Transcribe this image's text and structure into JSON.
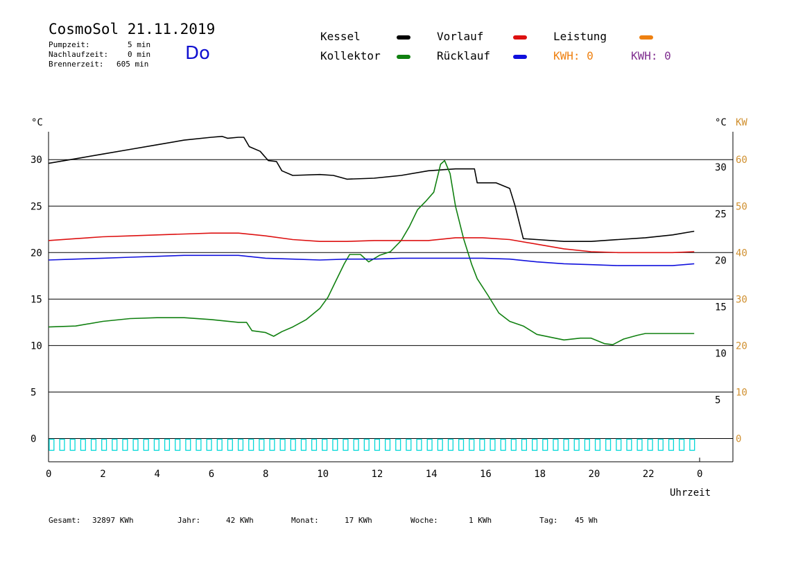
{
  "header": {
    "title": "CosmoSol 21.11.2019",
    "day": "Do",
    "stats": [
      {
        "label": "Pumpzeit:",
        "value": "5 min"
      },
      {
        "label": "Nachlaufzeit:",
        "value": "0 min"
      },
      {
        "label": "Brennerzeit:",
        "value": "605 min"
      }
    ]
  },
  "legend": {
    "kessel": "Kessel",
    "kollektor": "Kollektor",
    "vorlauf": "Vorlauf",
    "ruecklauf": "Rücklauf",
    "leistung": "Leistung",
    "kwh_orange": "KWH: 0",
    "kwh_purple": "KWH: 0"
  },
  "colors": {
    "kessel": "#000000",
    "kollektor": "#108010",
    "vorlauf": "#dd1010",
    "ruecklauf": "#1010dd",
    "leistung": "#ee8010",
    "kwh_purple": "#803090",
    "pump": "#00d8d8",
    "axis_kw": "#d09030"
  },
  "footer": [
    {
      "label": "Gesamt:",
      "value": "32897 KWh"
    },
    {
      "label": "Jahr:",
      "value": "42 KWh"
    },
    {
      "label": "Monat:",
      "value": "17 KWh"
    },
    {
      "label": "Woche:",
      "value": "1 KWh"
    },
    {
      "label": "Tag:",
      "value": "45 Wh"
    }
  ],
  "chart_data": {
    "type": "line",
    "xlabel": "Uhrzeit",
    "ylabel_left": "°C",
    "ylabel_right": "°C",
    "ylabel_right2": "KW",
    "xlim": [
      0,
      24
    ],
    "ylim": [
      -2.5,
      33
    ],
    "grid": true,
    "x_ticks": [
      "0",
      "2",
      "4",
      "6",
      "8",
      "10",
      "12",
      "14",
      "16",
      "18",
      "20",
      "22",
      "0"
    ],
    "y_ticks_left": [
      0,
      5,
      10,
      15,
      20,
      25,
      30
    ],
    "y_ticks_right": [
      5,
      10,
      15,
      20,
      25,
      30
    ],
    "y_ticks_kw": [
      0,
      10,
      20,
      30,
      40,
      50,
      60
    ],
    "series": [
      {
        "name": "Kessel",
        "color": "#000000",
        "points": [
          [
            0,
            29.6
          ],
          [
            1,
            30.1
          ],
          [
            2,
            30.6
          ],
          [
            3,
            31.1
          ],
          [
            4,
            31.6
          ],
          [
            5,
            32.1
          ],
          [
            6,
            32.4
          ],
          [
            6.4,
            32.5
          ],
          [
            6.6,
            32.3
          ],
          [
            7,
            32.4
          ],
          [
            7.2,
            32.4
          ],
          [
            7.4,
            31.4
          ],
          [
            7.8,
            30.9
          ],
          [
            8.1,
            29.9
          ],
          [
            8.4,
            29.8
          ],
          [
            8.6,
            28.8
          ],
          [
            9,
            28.3
          ],
          [
            10,
            28.4
          ],
          [
            10.5,
            28.3
          ],
          [
            11,
            27.9
          ],
          [
            12,
            28.0
          ],
          [
            13,
            28.3
          ],
          [
            14,
            28.8
          ],
          [
            15,
            29.0
          ],
          [
            15.7,
            29.0
          ],
          [
            15.8,
            27.5
          ],
          [
            16.5,
            27.5
          ],
          [
            17,
            26.9
          ],
          [
            17.2,
            25.0
          ],
          [
            17.5,
            21.5
          ],
          [
            18,
            21.4
          ],
          [
            19,
            21.2
          ],
          [
            20,
            21.2
          ],
          [
            21,
            21.4
          ],
          [
            22,
            21.6
          ],
          [
            23,
            21.9
          ],
          [
            23.8,
            22.3
          ]
        ]
      },
      {
        "name": "Kollektor",
        "color": "#108010",
        "points": [
          [
            0,
            12.0
          ],
          [
            1,
            12.1
          ],
          [
            2,
            12.6
          ],
          [
            3,
            12.9
          ],
          [
            4,
            13.0
          ],
          [
            5,
            13.0
          ],
          [
            6,
            12.8
          ],
          [
            7,
            12.5
          ],
          [
            7.3,
            12.5
          ],
          [
            7.5,
            11.6
          ],
          [
            8,
            11.4
          ],
          [
            8.3,
            11.0
          ],
          [
            8.6,
            11.5
          ],
          [
            9,
            12.0
          ],
          [
            9.5,
            12.8
          ],
          [
            10,
            14.0
          ],
          [
            10.3,
            15.2
          ],
          [
            10.6,
            17.0
          ],
          [
            10.9,
            18.8
          ],
          [
            11.1,
            19.8
          ],
          [
            11.5,
            19.8
          ],
          [
            11.8,
            19.0
          ],
          [
            12.2,
            19.7
          ],
          [
            12.6,
            20.1
          ],
          [
            13,
            21.3
          ],
          [
            13.3,
            22.8
          ],
          [
            13.6,
            24.6
          ],
          [
            13.9,
            25.5
          ],
          [
            14.2,
            26.5
          ],
          [
            14.45,
            29.5
          ],
          [
            14.6,
            29.9
          ],
          [
            14.8,
            28.5
          ],
          [
            15,
            25.0
          ],
          [
            15.3,
            21.5
          ],
          [
            15.6,
            18.7
          ],
          [
            15.8,
            17.2
          ],
          [
            16.2,
            15.4
          ],
          [
            16.6,
            13.5
          ],
          [
            17,
            12.6
          ],
          [
            17.5,
            12.1
          ],
          [
            18,
            11.2
          ],
          [
            18.5,
            10.9
          ],
          [
            19,
            10.6
          ],
          [
            19.6,
            10.8
          ],
          [
            20,
            10.8
          ],
          [
            20.5,
            10.2
          ],
          [
            20.8,
            10.1
          ],
          [
            21.2,
            10.7
          ],
          [
            21.7,
            11.1
          ],
          [
            22,
            11.3
          ],
          [
            23,
            11.3
          ],
          [
            23.8,
            11.3
          ]
        ]
      },
      {
        "name": "Vorlauf",
        "color": "#dd1010",
        "points": [
          [
            0,
            21.3
          ],
          [
            1,
            21.5
          ],
          [
            2,
            21.7
          ],
          [
            3,
            21.8
          ],
          [
            4,
            21.9
          ],
          [
            5,
            22.0
          ],
          [
            6,
            22.1
          ],
          [
            7,
            22.1
          ],
          [
            8,
            21.8
          ],
          [
            9,
            21.4
          ],
          [
            10,
            21.2
          ],
          [
            11,
            21.2
          ],
          [
            12,
            21.3
          ],
          [
            13,
            21.3
          ],
          [
            14,
            21.3
          ],
          [
            15,
            21.6
          ],
          [
            16,
            21.6
          ],
          [
            17,
            21.4
          ],
          [
            18,
            20.9
          ],
          [
            19,
            20.4
          ],
          [
            20,
            20.1
          ],
          [
            21,
            20.0
          ],
          [
            22,
            20.0
          ],
          [
            23,
            20.0
          ],
          [
            23.8,
            20.1
          ]
        ]
      },
      {
        "name": "Rücklauf",
        "color": "#1010dd",
        "points": [
          [
            0,
            19.2
          ],
          [
            1,
            19.3
          ],
          [
            2,
            19.4
          ],
          [
            3,
            19.5
          ],
          [
            4,
            19.6
          ],
          [
            5,
            19.7
          ],
          [
            6,
            19.7
          ],
          [
            7,
            19.7
          ],
          [
            8,
            19.4
          ],
          [
            9,
            19.3
          ],
          [
            10,
            19.2
          ],
          [
            11,
            19.3
          ],
          [
            12,
            19.3
          ],
          [
            13,
            19.4
          ],
          [
            14,
            19.4
          ],
          [
            15,
            19.4
          ],
          [
            16,
            19.4
          ],
          [
            17,
            19.3
          ],
          [
            18,
            19.0
          ],
          [
            19,
            18.8
          ],
          [
            20,
            18.7
          ],
          [
            21,
            18.6
          ],
          [
            22,
            18.6
          ],
          [
            23,
            18.6
          ],
          [
            23.8,
            18.8
          ]
        ]
      }
    ],
    "pump_pulses": 62
  }
}
